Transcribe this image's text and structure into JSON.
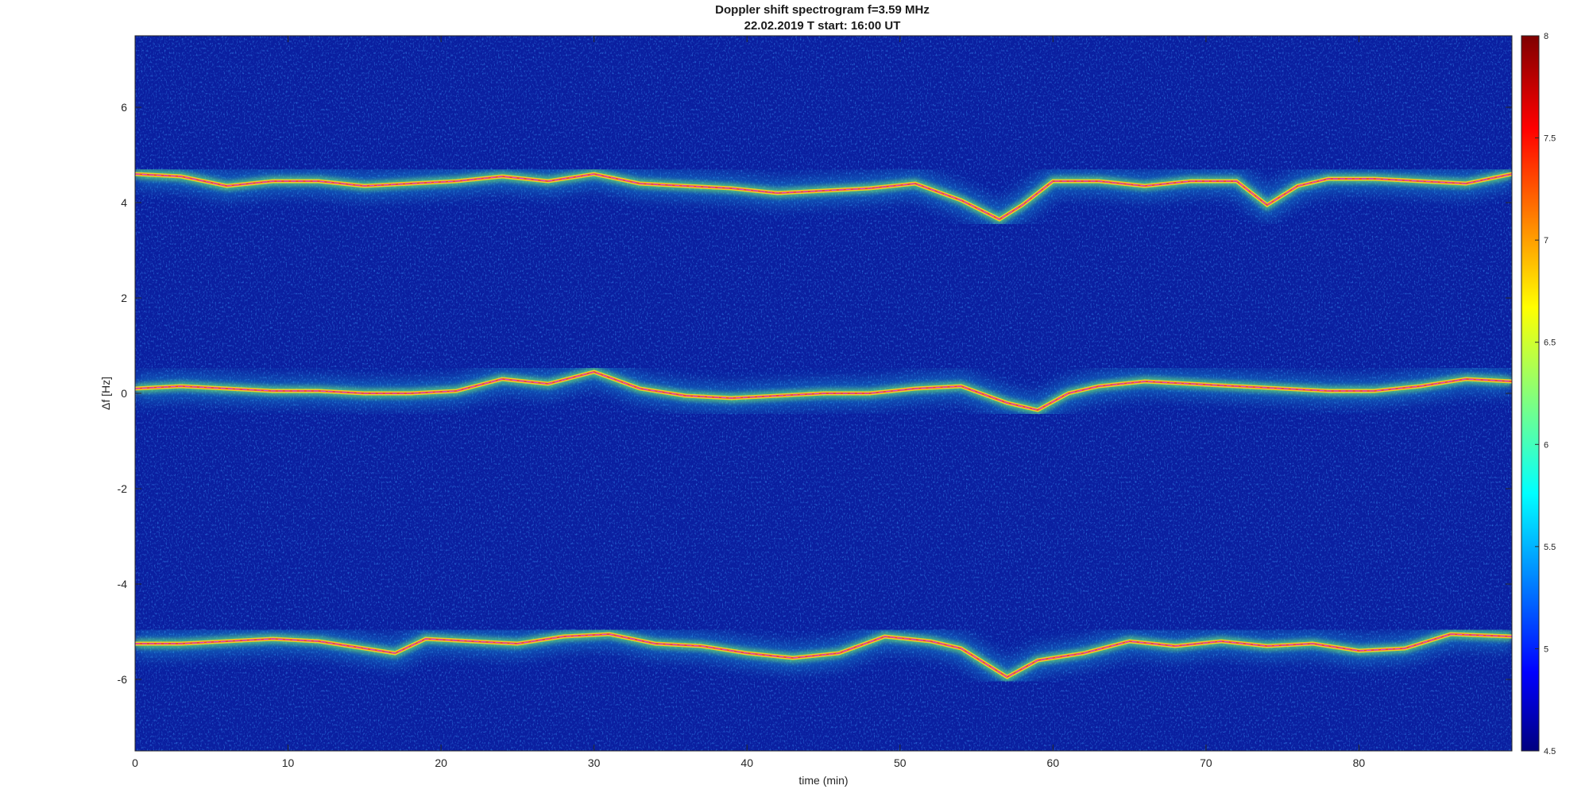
{
  "chart_data": {
    "type": "heatmap",
    "title": "Doppler shift spectrogram f=3.59 MHz",
    "subtitle": "22.02.2019   T start: 16:00 UT",
    "xlabel": "time (min)",
    "ylabel": "Δf [Hz]",
    "xlim": [
      0,
      90
    ],
    "ylim": [
      -7.5,
      7.5
    ],
    "x_ticks": [
      0,
      10,
      20,
      30,
      40,
      50,
      60,
      70,
      80
    ],
    "y_ticks": [
      -6,
      -4,
      -2,
      0,
      2,
      4,
      6
    ],
    "colorbar": {
      "colormap": "jet",
      "range": [
        4.5,
        8
      ],
      "ticks": [
        4.5,
        5,
        5.5,
        6,
        6.5,
        7,
        7.5,
        8
      ]
    },
    "background_color": "#0a1fa0",
    "traces": [
      {
        "points": [
          [
            0,
            4.6
          ],
          [
            3,
            4.55
          ],
          [
            6,
            4.35
          ],
          [
            9,
            4.45
          ],
          [
            12,
            4.45
          ],
          [
            15,
            4.35
          ],
          [
            18,
            4.4
          ],
          [
            21,
            4.45
          ],
          [
            24,
            4.55
          ],
          [
            27,
            4.45
          ],
          [
            30,
            4.6
          ],
          [
            33,
            4.4
          ],
          [
            36,
            4.35
          ],
          [
            39,
            4.3
          ],
          [
            42,
            4.2
          ],
          [
            45,
            4.25
          ],
          [
            48,
            4.3
          ],
          [
            51,
            4.4
          ],
          [
            54,
            4.05
          ],
          [
            56.5,
            3.65
          ],
          [
            58,
            3.95
          ],
          [
            60,
            4.45
          ],
          [
            63,
            4.45
          ],
          [
            66,
            4.35
          ],
          [
            69,
            4.45
          ],
          [
            72,
            4.45
          ],
          [
            74,
            3.95
          ],
          [
            76,
            4.35
          ],
          [
            78,
            4.5
          ],
          [
            81,
            4.5
          ],
          [
            84,
            4.45
          ],
          [
            87,
            4.4
          ],
          [
            90,
            4.6
          ]
        ]
      },
      {
        "points": [
          [
            0,
            0.1
          ],
          [
            3,
            0.15
          ],
          [
            6,
            0.1
          ],
          [
            9,
            0.05
          ],
          [
            12,
            0.05
          ],
          [
            15,
            0.0
          ],
          [
            18,
            0.0
          ],
          [
            21,
            0.05
          ],
          [
            24,
            0.3
          ],
          [
            27,
            0.2
          ],
          [
            30,
            0.45
          ],
          [
            33,
            0.1
          ],
          [
            36,
            -0.05
          ],
          [
            39,
            -0.1
          ],
          [
            42,
            -0.05
          ],
          [
            45,
            0.0
          ],
          [
            48,
            0.0
          ],
          [
            51,
            0.1
          ],
          [
            54,
            0.15
          ],
          [
            57,
            -0.2
          ],
          [
            59,
            -0.35
          ],
          [
            61,
            0.0
          ],
          [
            63,
            0.15
          ],
          [
            66,
            0.25
          ],
          [
            69,
            0.2
          ],
          [
            72,
            0.15
          ],
          [
            75,
            0.1
          ],
          [
            78,
            0.05
          ],
          [
            81,
            0.05
          ],
          [
            84,
            0.15
          ],
          [
            87,
            0.3
          ],
          [
            90,
            0.25
          ]
        ]
      },
      {
        "points": [
          [
            0,
            -5.25
          ],
          [
            3,
            -5.25
          ],
          [
            6,
            -5.2
          ],
          [
            9,
            -5.15
          ],
          [
            12,
            -5.2
          ],
          [
            15,
            -5.35
          ],
          [
            17,
            -5.45
          ],
          [
            19,
            -5.15
          ],
          [
            22,
            -5.2
          ],
          [
            25,
            -5.25
          ],
          [
            28,
            -5.1
          ],
          [
            31,
            -5.05
          ],
          [
            34,
            -5.25
          ],
          [
            37,
            -5.3
          ],
          [
            40,
            -5.45
          ],
          [
            43,
            -5.55
          ],
          [
            46,
            -5.45
          ],
          [
            49,
            -5.1
          ],
          [
            52,
            -5.2
          ],
          [
            54,
            -5.35
          ],
          [
            57,
            -5.95
          ],
          [
            59,
            -5.6
          ],
          [
            62,
            -5.45
          ],
          [
            65,
            -5.2
          ],
          [
            68,
            -5.3
          ],
          [
            71,
            -5.2
          ],
          [
            74,
            -5.3
          ],
          [
            77,
            -5.25
          ],
          [
            80,
            -5.4
          ],
          [
            83,
            -5.35
          ],
          [
            86,
            -5.05
          ],
          [
            90,
            -5.1
          ]
        ]
      }
    ]
  }
}
